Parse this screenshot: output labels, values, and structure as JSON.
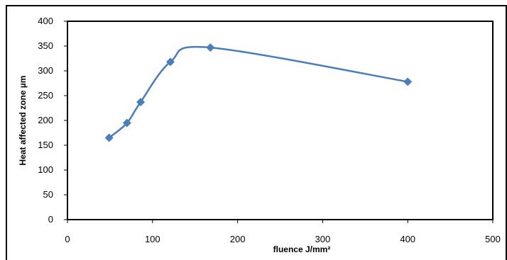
{
  "chart_data": {
    "type": "line",
    "title": "",
    "xlabel": "fluence  J/mm²",
    "ylabel": "Heat affected zone µm",
    "xlim": [
      0,
      500
    ],
    "ylim": [
      0,
      400
    ],
    "x_ticks": [
      "0",
      "100",
      "200",
      "300",
      "400",
      "500"
    ],
    "y_ticks": [
      "0",
      "50",
      "100",
      "150",
      "200",
      "250",
      "300",
      "350",
      "400"
    ],
    "grid": false,
    "legend": "none",
    "series": [
      {
        "color": "#4a7ebb",
        "marker": "diamond",
        "smooth": true,
        "points": [
          {
            "x": 49,
            "y": 165
          },
          {
            "x": 70,
            "y": 195
          },
          {
            "x": 86,
            "y": 237
          },
          {
            "x": 121,
            "y": 318
          },
          {
            "x": 168,
            "y": 347
          },
          {
            "x": 400,
            "y": 278
          }
        ]
      }
    ]
  }
}
